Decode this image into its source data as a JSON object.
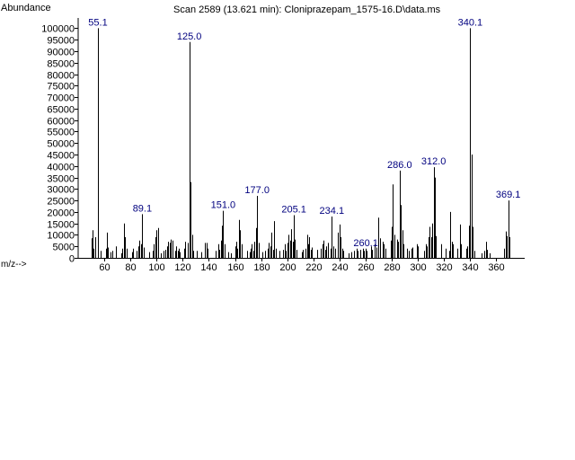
{
  "chart_data": {
    "type": "bar",
    "title": "Scan 2589 (13.621 min): Cloniprazepam_1575-16.D\\data.ms",
    "ylabel": "Abundance",
    "xlabel": "m/z-->",
    "xlim": [
      40,
      376
    ],
    "ylim": [
      0,
      102000
    ],
    "x_ticks": [
      60,
      80,
      100,
      120,
      140,
      160,
      180,
      200,
      220,
      240,
      260,
      280,
      300,
      320,
      340,
      360
    ],
    "y_ticks": [
      0,
      5000,
      10000,
      15000,
      20000,
      25000,
      30000,
      35000,
      40000,
      45000,
      50000,
      55000,
      60000,
      65000,
      70000,
      75000,
      80000,
      85000,
      90000,
      95000,
      100000
    ],
    "peak_labels": [
      {
        "text": "55.1",
        "x": 55.1,
        "y": 100000
      },
      {
        "text": "89.1",
        "x": 89.1,
        "y": 19000
      },
      {
        "text": "125.0",
        "x": 125.0,
        "y": 94000
      },
      {
        "text": "151.0",
        "x": 151.0,
        "y": 20500
      },
      {
        "text": "177.0",
        "x": 177.0,
        "y": 27000
      },
      {
        "text": "205.1",
        "x": 205.1,
        "y": 18600
      },
      {
        "text": "234.1",
        "x": 234.1,
        "y": 18000
      },
      {
        "text": "260.1",
        "x": 260.1,
        "y": 4000
      },
      {
        "text": "286.0",
        "x": 286.0,
        "y": 38000
      },
      {
        "text": "312.0",
        "x": 312.0,
        "y": 39500
      },
      {
        "text": "340.1",
        "x": 340.1,
        "y": 100000
      },
      {
        "text": "369.1",
        "x": 369.1,
        "y": 25000
      }
    ],
    "peaks": [
      [
        50,
        8500
      ],
      [
        51,
        12000
      ],
      [
        52,
        4000
      ],
      [
        53,
        9000
      ],
      [
        55.1,
        100000
      ],
      [
        57,
        3000
      ],
      [
        61,
        4000
      ],
      [
        62,
        11000
      ],
      [
        63,
        4500
      ],
      [
        65,
        2500
      ],
      [
        66,
        3000
      ],
      [
        69,
        5000
      ],
      [
        73,
        2000
      ],
      [
        74,
        4000
      ],
      [
        75,
        15000
      ],
      [
        76,
        9000
      ],
      [
        77,
        4000
      ],
      [
        81,
        2500
      ],
      [
        82,
        4000
      ],
      [
        85,
        3000
      ],
      [
        86,
        5000
      ],
      [
        87,
        7500
      ],
      [
        88,
        6000
      ],
      [
        89.1,
        19000
      ],
      [
        90,
        4500
      ],
      [
        94,
        2500
      ],
      [
        97,
        3000
      ],
      [
        98,
        6000
      ],
      [
        99,
        9000
      ],
      [
        100,
        12000
      ],
      [
        101,
        13000
      ],
      [
        103,
        2000
      ],
      [
        105,
        3000
      ],
      [
        107,
        3500
      ],
      [
        108,
        5000
      ],
      [
        109,
        7000
      ],
      [
        110,
        6500
      ],
      [
        111,
        8000
      ],
      [
        112,
        7500
      ],
      [
        114,
        3000
      ],
      [
        115,
        5000
      ],
      [
        116,
        3000
      ],
      [
        117,
        4000
      ],
      [
        118,
        2500
      ],
      [
        121,
        4000
      ],
      [
        122,
        7000
      ],
      [
        124,
        6500
      ],
      [
        125.0,
        94000
      ],
      [
        126,
        33000
      ],
      [
        127,
        10000
      ],
      [
        128,
        3000
      ],
      [
        131,
        3000
      ],
      [
        134,
        2500
      ],
      [
        137,
        6500
      ],
      [
        138,
        6500
      ],
      [
        139,
        4000
      ],
      [
        145,
        3000
      ],
      [
        147,
        6000
      ],
      [
        148,
        3500
      ],
      [
        149,
        7500
      ],
      [
        150,
        14000
      ],
      [
        151.0,
        20500
      ],
      [
        152,
        6000
      ],
      [
        155,
        2500
      ],
      [
        157,
        2000
      ],
      [
        160,
        5000
      ],
      [
        161,
        7000
      ],
      [
        162,
        4000
      ],
      [
        163,
        16500
      ],
      [
        164,
        12000
      ],
      [
        165,
        6000
      ],
      [
        169,
        3000
      ],
      [
        171,
        2500
      ],
      [
        172,
        4000
      ],
      [
        173,
        6000
      ],
      [
        174,
        3000
      ],
      [
        175,
        7000
      ],
      [
        176,
        13000
      ],
      [
        177.0,
        27000
      ],
      [
        178,
        6500
      ],
      [
        181,
        2500
      ],
      [
        183,
        3000
      ],
      [
        185,
        4000
      ],
      [
        186,
        6500
      ],
      [
        187,
        5000
      ],
      [
        188,
        11000
      ],
      [
        189,
        3500
      ],
      [
        190,
        16000
      ],
      [
        191,
        4000
      ],
      [
        194,
        3000
      ],
      [
        197,
        3500
      ],
      [
        198,
        6000
      ],
      [
        199,
        3000
      ],
      [
        200,
        6500
      ],
      [
        201,
        10000
      ],
      [
        202,
        7500
      ],
      [
        203,
        12500
      ],
      [
        204,
        7000
      ],
      [
        205.1,
        18600
      ],
      [
        206,
        8000
      ],
      [
        207,
        3500
      ],
      [
        211,
        2500
      ],
      [
        212,
        3500
      ],
      [
        214,
        4000
      ],
      [
        215,
        10000
      ],
      [
        216,
        6000
      ],
      [
        217,
        9000
      ],
      [
        218,
        3500
      ],
      [
        219,
        4500
      ],
      [
        223,
        3500
      ],
      [
        226,
        4000
      ],
      [
        227,
        6000
      ],
      [
        228,
        7500
      ],
      [
        229,
        3500
      ],
      [
        230,
        5000
      ],
      [
        231,
        6500
      ],
      [
        233,
        4000
      ],
      [
        234.1,
        18000
      ],
      [
        235,
        5000
      ],
      [
        237,
        4000
      ],
      [
        239,
        11000
      ],
      [
        240,
        14500
      ],
      [
        241,
        9000
      ],
      [
        242,
        4000
      ],
      [
        243,
        3000
      ],
      [
        247,
        2000
      ],
      [
        249,
        2500
      ],
      [
        251,
        3000
      ],
      [
        253,
        4000
      ],
      [
        254,
        3000
      ],
      [
        256,
        3500
      ],
      [
        258,
        4000
      ],
      [
        259,
        3000
      ],
      [
        260.1,
        4000
      ],
      [
        261,
        3000
      ],
      [
        264,
        5000
      ],
      [
        265,
        3500
      ],
      [
        267,
        6000
      ],
      [
        268,
        4500
      ],
      [
        270,
        17500
      ],
      [
        271,
        8500
      ],
      [
        273,
        7000
      ],
      [
        274,
        6000
      ],
      [
        275,
        4000
      ],
      [
        279,
        7500
      ],
      [
        280,
        13500
      ],
      [
        281,
        32000
      ],
      [
        282,
        10000
      ],
      [
        284,
        8000
      ],
      [
        285,
        7000
      ],
      [
        286.0,
        38000
      ],
      [
        287,
        23000
      ],
      [
        288,
        12000
      ],
      [
        289,
        6000
      ],
      [
        292,
        4000
      ],
      [
        293,
        3000
      ],
      [
        295,
        4000
      ],
      [
        296,
        4500
      ],
      [
        299,
        6000
      ],
      [
        300,
        5000
      ],
      [
        305,
        3000
      ],
      [
        306,
        6000
      ],
      [
        307,
        5000
      ],
      [
        308,
        9000
      ],
      [
        309,
        13500
      ],
      [
        310,
        9000
      ],
      [
        311,
        15000
      ],
      [
        312.0,
        39500
      ],
      [
        313,
        35000
      ],
      [
        314,
        9500
      ],
      [
        318,
        6000
      ],
      [
        321,
        4000
      ],
      [
        324,
        3000
      ],
      [
        325,
        20000
      ],
      [
        326,
        7000
      ],
      [
        327,
        6000
      ],
      [
        330,
        4000
      ],
      [
        332,
        14500
      ],
      [
        333,
        6000
      ],
      [
        337,
        4000
      ],
      [
        338,
        5000
      ],
      [
        339,
        14000
      ],
      [
        340.1,
        100000
      ],
      [
        341,
        45000
      ],
      [
        342,
        13500
      ],
      [
        343,
        3000
      ],
      [
        349,
        2000
      ],
      [
        351,
        3000
      ],
      [
        352,
        7000
      ],
      [
        353,
        3500
      ],
      [
        355,
        2000
      ],
      [
        366,
        4000
      ],
      [
        367,
        11500
      ],
      [
        368,
        9500
      ],
      [
        369.1,
        25000
      ],
      [
        370,
        9000
      ]
    ]
  }
}
